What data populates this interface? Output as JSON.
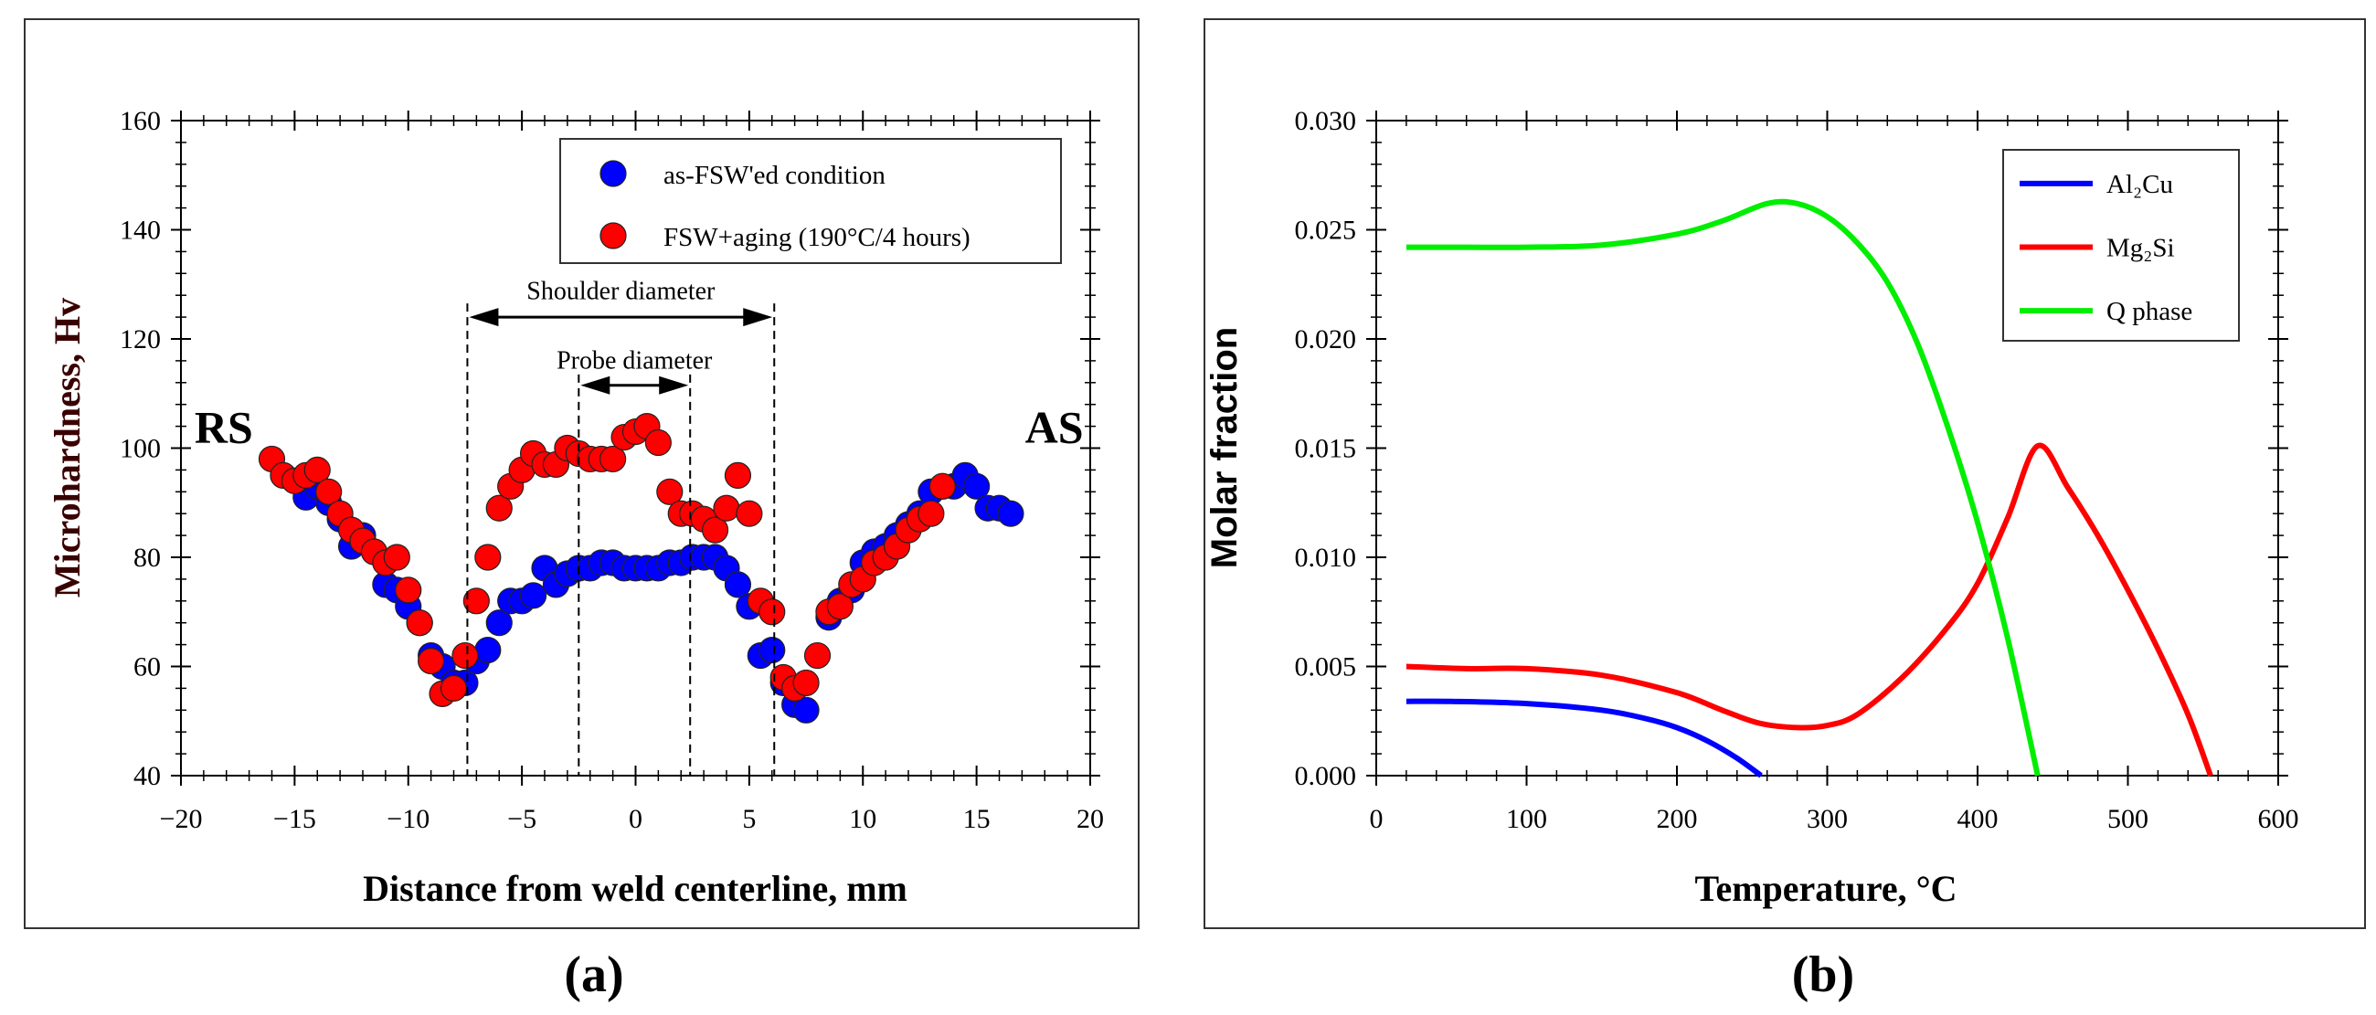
{
  "chart_data": [
    {
      "type": "scatter",
      "panel_label": "(a)",
      "xlabel": "Distance from weld centerline, mm",
      "ylabel": "Microhardness, Hv",
      "xlim": [
        -20,
        20
      ],
      "ylim": [
        40,
        160
      ],
      "x_ticks": [
        -20,
        -15,
        -10,
        -5,
        0,
        5,
        10,
        15,
        20
      ],
      "x_tick_labels": [
        "−20",
        "−15",
        "−10",
        "−5",
        "0",
        "5",
        "10",
        "15",
        "20"
      ],
      "y_ticks": [
        40,
        60,
        80,
        100,
        120,
        140,
        160
      ],
      "y_tick_labels": [
        "40",
        "60",
        "80",
        "100",
        "120",
        "140",
        "160"
      ],
      "x_minor_step": 1,
      "y_minor_step": 4,
      "grid": false,
      "legend_position": "top-right",
      "annotations": {
        "left_side": "RS",
        "right_side": "AS",
        "shoulder": {
          "label": "Shoulder diameter",
          "x_from": -7.4,
          "x_to": 6.1
        },
        "probe": {
          "label": "Probe diameter",
          "x_from": -2.5,
          "x_to": 2.4
        }
      },
      "series": [
        {
          "name": "as-FSW'ed condition",
          "color": "#0000ff",
          "points": [
            [
              -14.5,
              91
            ],
            [
              -14,
              93
            ],
            [
              -13.5,
              90
            ],
            [
              -13,
              87
            ],
            [
              -12.5,
              82
            ],
            [
              -12,
              84
            ],
            [
              -11.5,
              81
            ],
            [
              -11,
              75
            ],
            [
              -10.5,
              74
            ],
            [
              -10,
              71
            ],
            [
              -9.5,
              68
            ],
            [
              -9,
              62
            ],
            [
              -8.5,
              60
            ],
            [
              -8,
              57
            ],
            [
              -7.5,
              57
            ],
            [
              -7,
              61
            ],
            [
              -6.5,
              63
            ],
            [
              -6,
              68
            ],
            [
              -5.5,
              72
            ],
            [
              -5,
              72
            ],
            [
              -4.5,
              73
            ],
            [
              -4,
              78
            ],
            [
              -3.5,
              75
            ],
            [
              -3,
              77
            ],
            [
              -2.5,
              78
            ],
            [
              -2,
              78
            ],
            [
              -1.5,
              79
            ],
            [
              -1,
              79
            ],
            [
              -0.5,
              78
            ],
            [
              0,
              78
            ],
            [
              0.5,
              78
            ],
            [
              1,
              78
            ],
            [
              1.5,
              79
            ],
            [
              2,
              79
            ],
            [
              2.5,
              80
            ],
            [
              3,
              80
            ],
            [
              3.5,
              80
            ],
            [
              4,
              78
            ],
            [
              4.5,
              75
            ],
            [
              5,
              71
            ],
            [
              5.5,
              62
            ],
            [
              6,
              63
            ],
            [
              6.5,
              57
            ],
            [
              7,
              53
            ],
            [
              7.5,
              52
            ],
            [
              8.5,
              69
            ],
            [
              9,
              72
            ],
            [
              9.5,
              74
            ],
            [
              10,
              79
            ],
            [
              10.5,
              81
            ],
            [
              11,
              82
            ],
            [
              11.5,
              84
            ],
            [
              12,
              86
            ],
            [
              12.5,
              88
            ],
            [
              13,
              92
            ],
            [
              13.5,
              93
            ],
            [
              14,
              93
            ],
            [
              14.5,
              95
            ],
            [
              15,
              93
            ],
            [
              15.5,
              89
            ],
            [
              16,
              89
            ],
            [
              16.5,
              88
            ]
          ]
        },
        {
          "name": "FSW+aging (190°C/4 hours)",
          "color": "#ff0000",
          "points": [
            [
              -16,
              98
            ],
            [
              -15.5,
              95
            ],
            [
              -15,
              94
            ],
            [
              -14.5,
              95
            ],
            [
              -14,
              96
            ],
            [
              -13.5,
              92
            ],
            [
              -13,
              88
            ],
            [
              -12.5,
              85
            ],
            [
              -12,
              83
            ],
            [
              -11.5,
              81
            ],
            [
              -11,
              79
            ],
            [
              -10.5,
              80
            ],
            [
              -10,
              74
            ],
            [
              -9.5,
              68
            ],
            [
              -9,
              61
            ],
            [
              -8.5,
              55
            ],
            [
              -8,
              56
            ],
            [
              -7.5,
              62
            ],
            [
              -7,
              72
            ],
            [
              -6.5,
              80
            ],
            [
              -6,
              89
            ],
            [
              -5.5,
              93
            ],
            [
              -5,
              96
            ],
            [
              -4.5,
              99
            ],
            [
              -4,
              97
            ],
            [
              -3.5,
              97
            ],
            [
              -3,
              100
            ],
            [
              -2.5,
              99
            ],
            [
              -2,
              98
            ],
            [
              -1.5,
              98
            ],
            [
              -1,
              98
            ],
            [
              -0.5,
              102
            ],
            [
              0,
              103
            ],
            [
              0.5,
              104
            ],
            [
              1,
              101
            ],
            [
              1.5,
              92
            ],
            [
              2,
              88
            ],
            [
              2.5,
              88
            ],
            [
              3,
              87
            ],
            [
              3.5,
              85
            ],
            [
              4,
              89
            ],
            [
              4.5,
              95
            ],
            [
              5,
              88
            ],
            [
              5.5,
              72
            ],
            [
              6,
              70
            ],
            [
              6.5,
              58
            ],
            [
              7,
              56
            ],
            [
              7.5,
              57
            ],
            [
              8,
              62
            ],
            [
              8.5,
              70
            ],
            [
              9,
              71
            ],
            [
              9.5,
              75
            ],
            [
              10,
              76
            ],
            [
              10.5,
              79
            ],
            [
              11,
              80
            ],
            [
              11.5,
              82
            ],
            [
              12,
              85
            ],
            [
              12.5,
              87
            ],
            [
              13,
              88
            ],
            [
              13.5,
              93
            ]
          ]
        }
      ]
    },
    {
      "type": "line",
      "panel_label": "(b)",
      "xlabel": "Temperature, °C",
      "ylabel": "Molar fraction",
      "xlim": [
        0,
        600
      ],
      "ylim": [
        0,
        0.03
      ],
      "x_ticks": [
        0,
        100,
        200,
        300,
        400,
        500,
        600
      ],
      "x_tick_labels": [
        "0",
        "100",
        "200",
        "300",
        "400",
        "500",
        "600"
      ],
      "y_ticks": [
        0,
        0.005,
        0.01,
        0.015,
        0.02,
        0.025,
        0.03
      ],
      "y_tick_labels": [
        "0.000",
        "0.005",
        "0.010",
        "0.015",
        "0.020",
        "0.025",
        "0.030"
      ],
      "x_minor_step": 20,
      "y_minor_step": 0.001,
      "grid": false,
      "legend_position": "top-right",
      "series": [
        {
          "name": "Al₂Cu",
          "color": "#0000ff",
          "points": [
            [
              20,
              0.0034
            ],
            [
              50,
              0.0034
            ],
            [
              100,
              0.0033
            ],
            [
              150,
              0.003
            ],
            [
              180,
              0.0026
            ],
            [
              200,
              0.0022
            ],
            [
              220,
              0.0016
            ],
            [
              240,
              0.0008
            ],
            [
              256,
              0.0
            ]
          ]
        },
        {
          "name": "Mg₂Si",
          "color": "#ff0000",
          "points": [
            [
              20,
              0.005
            ],
            [
              60,
              0.0049
            ],
            [
              100,
              0.0049
            ],
            [
              150,
              0.0046
            ],
            [
              200,
              0.0038
            ],
            [
              230,
              0.003
            ],
            [
              255,
              0.0024
            ],
            [
              280,
              0.0022
            ],
            [
              300,
              0.0023
            ],
            [
              320,
              0.0028
            ],
            [
              350,
              0.0045
            ],
            [
              380,
              0.0068
            ],
            [
              400,
              0.0088
            ],
            [
              420,
              0.0118
            ],
            [
              440,
              0.0151
            ],
            [
              460,
              0.0132
            ],
            [
              480,
              0.011
            ],
            [
              500,
              0.0085
            ],
            [
              520,
              0.0058
            ],
            [
              540,
              0.0028
            ],
            [
              555,
              0.0
            ]
          ]
        },
        {
          "name": "Q phase",
          "color": "#00ee00",
          "points": [
            [
              20,
              0.0242
            ],
            [
              60,
              0.0242
            ],
            [
              100,
              0.0242
            ],
            [
              150,
              0.0243
            ],
            [
              200,
              0.0248
            ],
            [
              230,
              0.0254
            ],
            [
              260,
              0.0262
            ],
            [
              280,
              0.0262
            ],
            [
              300,
              0.0256
            ],
            [
              320,
              0.0244
            ],
            [
              340,
              0.0226
            ],
            [
              360,
              0.0198
            ],
            [
              380,
              0.016
            ],
            [
              400,
              0.0116
            ],
            [
              420,
              0.0063
            ],
            [
              440,
              0.0
            ]
          ]
        }
      ]
    }
  ]
}
